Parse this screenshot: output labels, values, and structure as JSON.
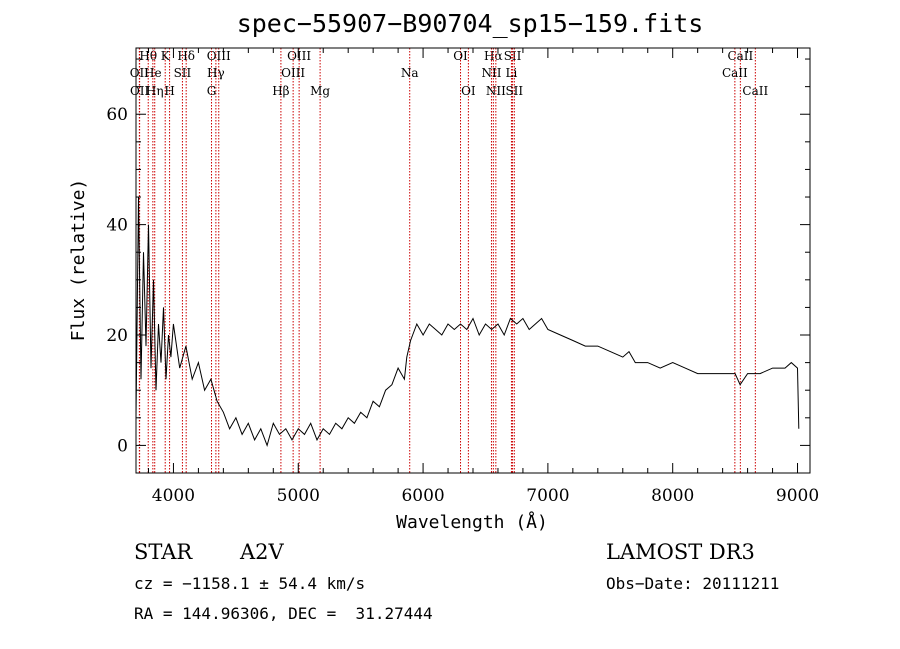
{
  "chart_data": {
    "type": "line",
    "title": "spec−55907−B90704_sp15−159.fits",
    "xlabel": "Wavelength (Å)",
    "ylabel": "Flux (relative)",
    "xlim": [
      3700,
      9100
    ],
    "ylim": [
      -5,
      72
    ],
    "xticks": [
      4000,
      5000,
      6000,
      7000,
      8000,
      9000
    ],
    "yticks": [
      0,
      20,
      40,
      60
    ],
    "series": [
      {
        "x": [
          3700,
          3720,
          3740,
          3760,
          3780,
          3800,
          3820,
          3840,
          3860,
          3880,
          3900,
          3920,
          3940,
          3960,
          3980,
          4000,
          4050,
          4100,
          4150,
          4200,
          4250,
          4300,
          4350,
          4400,
          4450,
          4500,
          4550,
          4600,
          4650,
          4700,
          4750,
          4800,
          4850,
          4900,
          4950,
          5000,
          5050,
          5100,
          5150,
          5200,
          5250,
          5300,
          5350,
          5400,
          5450,
          5500,
          5550,
          5600,
          5650,
          5700,
          5750,
          5800,
          5850,
          5870,
          5900,
          5950,
          6000,
          6050,
          6100,
          6150,
          6200,
          6250,
          6300,
          6350,
          6400,
          6450,
          6500,
          6550,
          6600,
          6650,
          6700,
          6750,
          6800,
          6850,
          6900,
          6950,
          7000,
          7100,
          7200,
          7300,
          7400,
          7500,
          7600,
          7650,
          7700,
          7800,
          7900,
          8000,
          8100,
          8200,
          8300,
          8400,
          8500,
          8540,
          8600,
          8700,
          8800,
          8900,
          8950,
          9000,
          9010
        ],
        "y": [
          5,
          45,
          12,
          35,
          18,
          40,
          14,
          30,
          10,
          22,
          15,
          25,
          12,
          20,
          16,
          22,
          14,
          18,
          12,
          15,
          10,
          12,
          8,
          6,
          3,
          5,
          2,
          4,
          1,
          3,
          0,
          4,
          2,
          3,
          1,
          3,
          2,
          4,
          1,
          3,
          2,
          4,
          3,
          5,
          4,
          6,
          5,
          8,
          7,
          10,
          11,
          14,
          12,
          16,
          19,
          22,
          20,
          22,
          21,
          20,
          22,
          21,
          22,
          21,
          23,
          20,
          22,
          21,
          22,
          20,
          23,
          22,
          23,
          21,
          22,
          23,
          21,
          20,
          19,
          18,
          18,
          17,
          16,
          17,
          15,
          15,
          14,
          15,
          14,
          13,
          13,
          13,
          13,
          11,
          13,
          13,
          14,
          14,
          15,
          14,
          3
        ]
      }
    ],
    "line_markers": [
      {
        "label": "Hθ",
        "x": 3798,
        "row": 0
      },
      {
        "label": "OII",
        "x": 3727,
        "row": 1
      },
      {
        "label": "OII",
        "x": 3729,
        "row": 2
      },
      {
        "label": "He",
        "x": 3835,
        "row": 1
      },
      {
        "label": "Hη",
        "x": 3850,
        "row": 2
      },
      {
        "label": "K",
        "x": 3934,
        "row": 0
      },
      {
        "label": "H",
        "x": 3969,
        "row": 2
      },
      {
        "label": "Hδ",
        "x": 4102,
        "row": 0
      },
      {
        "label": "SII",
        "x": 4072,
        "row": 1
      },
      {
        "label": "OIII",
        "x": 4363,
        "row": 0
      },
      {
        "label": "Hγ",
        "x": 4340,
        "row": 1
      },
      {
        "label": "G",
        "x": 4305,
        "row": 2
      },
      {
        "label": "Hβ",
        "x": 4861,
        "row": 2
      },
      {
        "label": "OIII",
        "x": 5007,
        "row": 0
      },
      {
        "label": "OIII",
        "x": 4959,
        "row": 1
      },
      {
        "label": "Mg",
        "x": 5175,
        "row": 2
      },
      {
        "label": "Na",
        "x": 5893,
        "row": 1
      },
      {
        "label": "OI",
        "x": 6300,
        "row": 0
      },
      {
        "label": "OI",
        "x": 6363,
        "row": 2
      },
      {
        "label": "Hα",
        "x": 6563,
        "row": 0
      },
      {
        "label": "NII",
        "x": 6548,
        "row": 1
      },
      {
        "label": "NII",
        "x": 6583,
        "row": 2
      },
      {
        "label": "SII",
        "x": 6717,
        "row": 0
      },
      {
        "label": "Li",
        "x": 6708,
        "row": 1
      },
      {
        "label": "SII",
        "x": 6731,
        "row": 2
      },
      {
        "label": "CaII",
        "x": 8542,
        "row": 0
      },
      {
        "label": "CaII",
        "x": 8498,
        "row": 1
      },
      {
        "label": "CaII",
        "x": 8662,
        "row": 2
      }
    ]
  },
  "info": {
    "class": "STAR",
    "subclass": "A2V",
    "survey": "LAMOST DR3",
    "cz": "cz = −1158.1 ± 54.4 km/s",
    "obsdate": "Obs−Date: 20111211",
    "radec": "RA = 144.96306, DEC =  31.27444"
  },
  "colors": {
    "marker": "#cc0000",
    "spectrum": "#000000"
  }
}
